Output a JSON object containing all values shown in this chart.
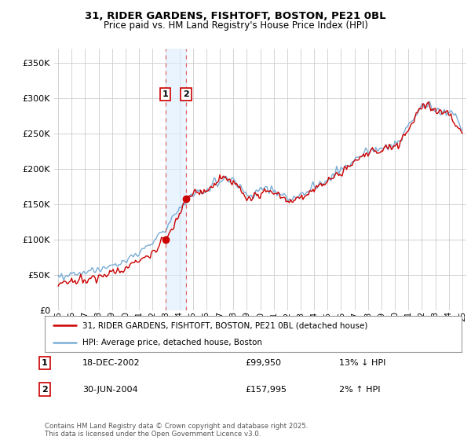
{
  "title1": "31, RIDER GARDENS, FISHTOFT, BOSTON, PE21 0BL",
  "title2": "Price paid vs. HM Land Registry's House Price Index (HPI)",
  "background_color": "#ffffff",
  "plot_bg_color": "#ffffff",
  "grid_color": "#cccccc",
  "sale1": {
    "date_num": 2002.96,
    "price": 99950,
    "label": "1",
    "date_str": "18-DEC-2002",
    "hpi_diff": "13% ↓ HPI"
  },
  "sale2": {
    "date_num": 2004.5,
    "price": 157995,
    "label": "2",
    "date_str": "30-JUN-2004",
    "hpi_diff": "2% ↑ HPI"
  },
  "hpi_line_color": "#7aadd4",
  "price_line_color": "#cc0000",
  "sale_marker_color": "#cc0000",
  "dashed_line_color": "#dd6666",
  "shade_color": "#ddeeff",
  "legend1_text": "31, RIDER GARDENS, FISHTOFT, BOSTON, PE21 0BL (detached house)",
  "legend2_text": "HPI: Average price, detached house, Boston",
  "footnote": "Contains HM Land Registry data © Crown copyright and database right 2025.\nThis data is licensed under the Open Government Licence v3.0.",
  "ylim": [
    0,
    370000
  ],
  "yticks": [
    0,
    50000,
    100000,
    150000,
    200000,
    250000,
    300000,
    350000
  ],
  "xlim": [
    1994.7,
    2025.3
  ],
  "xtick_years": [
    1995,
    1996,
    1997,
    1998,
    1999,
    2000,
    2001,
    2002,
    2003,
    2004,
    2005,
    2006,
    2007,
    2008,
    2009,
    2010,
    2011,
    2012,
    2013,
    2014,
    2015,
    2016,
    2017,
    2018,
    2019,
    2020,
    2021,
    2022,
    2023,
    2024,
    2025
  ],
  "noise_seed": 42,
  "hpi_base": [
    [
      1995.0,
      48000
    ],
    [
      1996.0,
      50000
    ],
    [
      1997.0,
      53000
    ],
    [
      1998.0,
      57000
    ],
    [
      1999.0,
      62000
    ],
    [
      2000.0,
      70000
    ],
    [
      2001.0,
      82000
    ],
    [
      2002.0,
      96000
    ],
    [
      2003.0,
      118000
    ],
    [
      2004.0,
      145000
    ],
    [
      2005.0,
      163000
    ],
    [
      2006.0,
      170000
    ],
    [
      2007.0,
      183000
    ],
    [
      2007.5,
      188000
    ],
    [
      2008.0,
      183000
    ],
    [
      2008.5,
      175000
    ],
    [
      2009.0,
      162000
    ],
    [
      2009.5,
      163000
    ],
    [
      2010.0,
      170000
    ],
    [
      2010.5,
      171000
    ],
    [
      2011.0,
      168000
    ],
    [
      2011.5,
      164000
    ],
    [
      2012.0,
      159000
    ],
    [
      2012.5,
      160000
    ],
    [
      2013.0,
      162000
    ],
    [
      2013.5,
      167000
    ],
    [
      2014.0,
      174000
    ],
    [
      2014.5,
      180000
    ],
    [
      2015.0,
      187000
    ],
    [
      2015.5,
      192000
    ],
    [
      2016.0,
      198000
    ],
    [
      2016.5,
      205000
    ],
    [
      2017.0,
      212000
    ],
    [
      2017.5,
      218000
    ],
    [
      2018.0,
      224000
    ],
    [
      2018.5,
      227000
    ],
    [
      2019.0,
      229000
    ],
    [
      2019.5,
      232000
    ],
    [
      2020.0,
      235000
    ],
    [
      2020.5,
      242000
    ],
    [
      2021.0,
      258000
    ],
    [
      2021.5,
      274000
    ],
    [
      2022.0,
      286000
    ],
    [
      2022.5,
      292000
    ],
    [
      2023.0,
      284000
    ],
    [
      2023.5,
      279000
    ],
    [
      2024.0,
      281000
    ],
    [
      2024.5,
      274000
    ],
    [
      2025.0,
      255000
    ]
  ],
  "price_base": [
    [
      1995.0,
      38000
    ],
    [
      1996.0,
      40000
    ],
    [
      1997.0,
      43000
    ],
    [
      1998.0,
      47000
    ],
    [
      1999.0,
      51000
    ],
    [
      2000.0,
      58000
    ],
    [
      2001.0,
      70000
    ],
    [
      2002.0,
      83000
    ],
    [
      2002.96,
      99950
    ],
    [
      2003.0,
      102000
    ],
    [
      2003.5,
      118000
    ],
    [
      2004.0,
      136000
    ],
    [
      2004.5,
      157995
    ],
    [
      2005.0,
      162000
    ],
    [
      2006.0,
      168000
    ],
    [
      2007.0,
      182000
    ],
    [
      2007.5,
      188000
    ],
    [
      2008.0,
      181000
    ],
    [
      2008.5,
      172000
    ],
    [
      2009.0,
      157000
    ],
    [
      2009.5,
      160000
    ],
    [
      2010.0,
      166000
    ],
    [
      2010.5,
      167000
    ],
    [
      2011.0,
      165000
    ],
    [
      2011.5,
      160000
    ],
    [
      2012.0,
      155000
    ],
    [
      2012.5,
      156000
    ],
    [
      2013.0,
      158000
    ],
    [
      2013.5,
      163000
    ],
    [
      2014.0,
      170000
    ],
    [
      2014.5,
      177000
    ],
    [
      2015.0,
      183000
    ],
    [
      2015.5,
      189000
    ],
    [
      2016.0,
      196000
    ],
    [
      2016.5,
      203000
    ],
    [
      2017.0,
      210000
    ],
    [
      2017.5,
      217000
    ],
    [
      2018.0,
      223000
    ],
    [
      2018.5,
      226000
    ],
    [
      2019.0,
      228000
    ],
    [
      2019.5,
      231000
    ],
    [
      2020.0,
      234000
    ],
    [
      2020.5,
      241000
    ],
    [
      2021.0,
      257000
    ],
    [
      2021.5,
      273000
    ],
    [
      2022.0,
      285000
    ],
    [
      2022.5,
      291000
    ],
    [
      2023.0,
      282000
    ],
    [
      2023.5,
      277000
    ],
    [
      2024.0,
      279000
    ],
    [
      2024.5,
      264000
    ],
    [
      2025.0,
      252000
    ]
  ]
}
